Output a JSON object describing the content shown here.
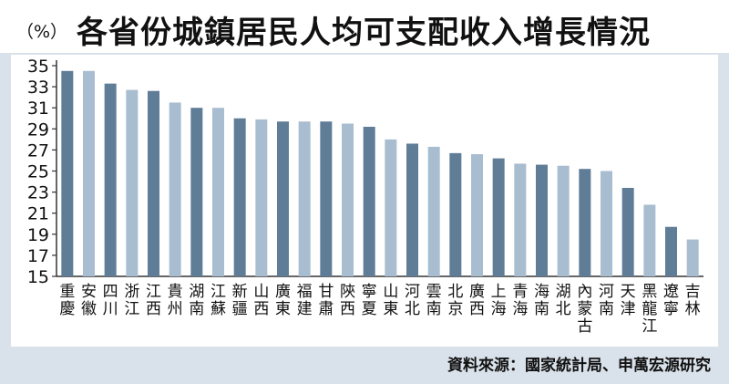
{
  "header": {
    "unit": "（%）",
    "title": "各省份城鎮居民人均可支配收入增長情況"
  },
  "footer": {
    "source": "資料來源：國家統計局、申萬宏源研究"
  },
  "colors": {
    "dark_bar": "#607d97",
    "light_bar": "#a9bdd0",
    "background": "#d9e2ea",
    "plot_background": "#ffffff"
  },
  "chart_data": {
    "type": "bar",
    "title": "各省份城鎮居民人均可支配收入增長情況",
    "ylabel": "（%）",
    "ylim": [
      15,
      35
    ],
    "yticks": [
      35,
      33,
      31,
      29,
      27,
      25,
      23,
      21,
      19,
      17,
      15
    ],
    "grid": false,
    "categories": [
      "重慶",
      "安徽",
      "四川",
      "浙江",
      "江西",
      "貴州",
      "湖南",
      "江蘇",
      "新疆",
      "山西",
      "廣東",
      "福建",
      "甘肅",
      "陝西",
      "寧夏",
      "山東",
      "河北",
      "雲南",
      "北京",
      "廣西",
      "上海",
      "青海",
      "海南",
      "湖北",
      "內蒙古",
      "河南",
      "天津",
      "黑龍江",
      "遼寧",
      "吉林"
    ],
    "values": [
      34.5,
      34.5,
      33.3,
      32.7,
      32.6,
      31.5,
      31.0,
      31.0,
      30.0,
      29.9,
      29.7,
      29.7,
      29.7,
      29.5,
      29.2,
      28.0,
      27.6,
      27.3,
      26.7,
      26.6,
      26.2,
      25.7,
      25.6,
      25.5,
      25.2,
      25.0,
      23.4,
      21.8,
      19.7,
      18.5
    ]
  }
}
